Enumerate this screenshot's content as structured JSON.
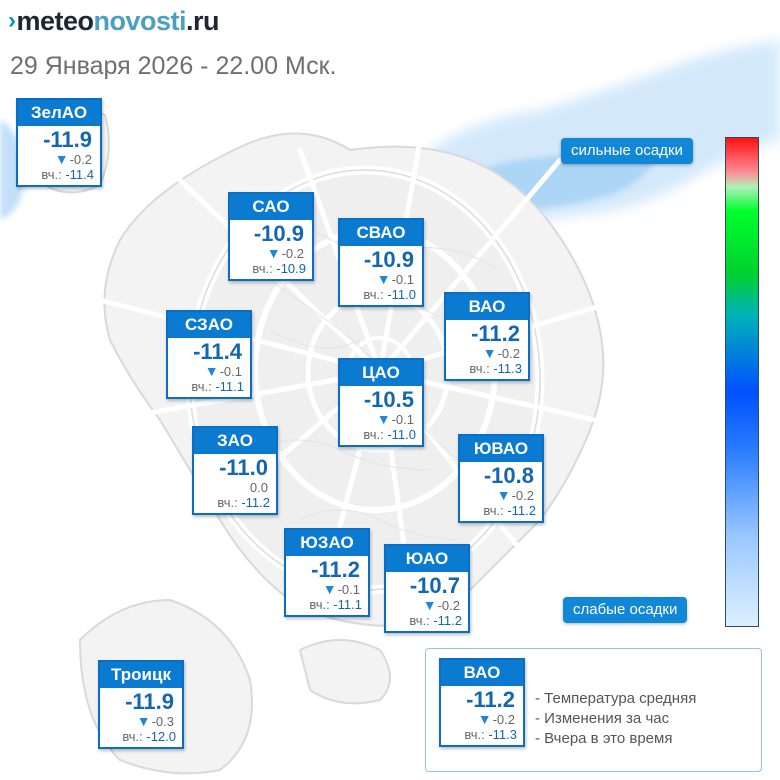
{
  "logo": {
    "mark": "›",
    "part1": "meteo",
    "part2": "novosti",
    "part3": ".ru"
  },
  "datetime": "29 Января 2026 - 22.00 Мск.",
  "yesterday_prefix": "вч.:",
  "districts": {
    "zelao": {
      "name": "ЗелАО",
      "temp": "-11.9",
      "delta_arrow": "▼",
      "delta": "-0.2",
      "yesterday": "-11.4"
    },
    "sao": {
      "name": "САО",
      "temp": "-10.9",
      "delta_arrow": "▼",
      "delta": "-0.2",
      "yesterday": "-10.9"
    },
    "svao": {
      "name": "СВАО",
      "temp": "-10.9",
      "delta_arrow": "▼",
      "delta": "-0.1",
      "yesterday": "-11.0"
    },
    "vao": {
      "name": "ВАО",
      "temp": "-11.2",
      "delta_arrow": "▼",
      "delta": "-0.2",
      "yesterday": "-11.3"
    },
    "szao": {
      "name": "СЗАО",
      "temp": "-11.4",
      "delta_arrow": "▼",
      "delta": "-0.1",
      "yesterday": "-11.1"
    },
    "cao": {
      "name": "ЦАО",
      "temp": "-10.5",
      "delta_arrow": "▼",
      "delta": "-0.1",
      "yesterday": "-11.0"
    },
    "zao": {
      "name": "ЗАО",
      "temp": "-11.0",
      "delta_arrow": "",
      "delta": "0.0",
      "yesterday": "-11.2"
    },
    "yuvao": {
      "name": "ЮВАО",
      "temp": "-10.8",
      "delta_arrow": "▼",
      "delta": "-0.2",
      "yesterday": "-11.2"
    },
    "yuzao": {
      "name": "ЮЗАО",
      "temp": "-11.2",
      "delta_arrow": "▼",
      "delta": "-0.1",
      "yesterday": "-11.1"
    },
    "yuao": {
      "name": "ЮАО",
      "temp": "-10.7",
      "delta_arrow": "▼",
      "delta": "-0.2",
      "yesterday": "-11.2"
    },
    "troitsk": {
      "name": "Троицк",
      "temp": "-11.9",
      "delta_arrow": "▼",
      "delta": "-0.3",
      "yesterday": "-12.0"
    }
  },
  "scale": {
    "top_label": "сильные осадки",
    "bottom_label": "слабые осадки"
  },
  "legend": {
    "example": {
      "name": "ВАО",
      "temp": "-11.2",
      "delta_arrow": "▼",
      "delta": "-0.2",
      "yesterday": "-11.3"
    },
    "line1": "- Температура средняя",
    "line2": "- Изменения за час",
    "line3": "- Вчера в это время"
  },
  "colors": {
    "header_blue": "#0b7ad1",
    "temp_blue": "#1366b0",
    "arrow_blue": "#1f86d6",
    "precip_light": "#bfe0f8",
    "precip_mid": "#8cc6f0",
    "scale_red": "#ff1010",
    "scale_green": "#00d030",
    "scale_blue": "#0050ff"
  }
}
